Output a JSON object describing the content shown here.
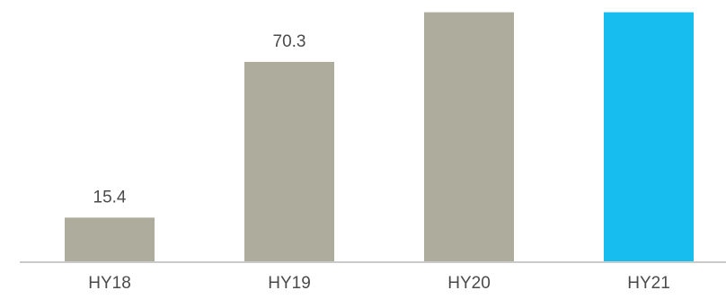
{
  "chart_data": {
    "type": "bar",
    "categories": [
      "HY18",
      "HY19",
      "HY20",
      "HY21"
    ],
    "values": [
      15.4,
      70.3,
      87.8,
      87.8
    ],
    "data_labels": [
      "15.4",
      "70.3",
      "",
      ""
    ],
    "bar_colors": [
      "#aeac9c",
      "#aeac9c",
      "#aeac9c",
      "#17bdef"
    ],
    "label_color": "#4a4a4a",
    "axis_color": "#b9b9b9",
    "ylim": [
      0,
      88
    ],
    "grid": false,
    "legend": "none"
  }
}
